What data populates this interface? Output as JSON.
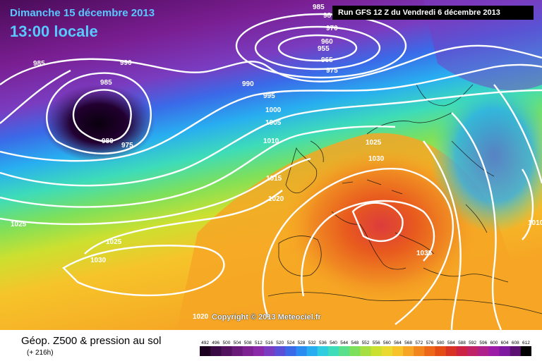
{
  "header": {
    "date": "Dimanche 15 décembre 2013",
    "time": "13:00 locale",
    "run": "Run GFS 12 Z du Vendredi 6 décembre 2013"
  },
  "copyright": "Copyright © 2013 Meteociel.fr",
  "legend": {
    "title": "Géop. Z500 & pression au sol",
    "subtitle": "(+ 216h)",
    "scale_values": [
      "492",
      "496",
      "500",
      "504",
      "508",
      "512",
      "516",
      "520",
      "524",
      "528",
      "532",
      "536",
      "540",
      "544",
      "548",
      "552",
      "556",
      "560",
      "564",
      "568",
      "572",
      "576",
      "580",
      "584",
      "588",
      "592",
      "596",
      "600",
      "604",
      "608",
      "612"
    ],
    "scale_colors": [
      "#1c0020",
      "#3a0a45",
      "#52125e",
      "#6a1a78",
      "#7d2290",
      "#8a2aa8",
      "#7a3cc0",
      "#5a50d8",
      "#3a6ae8",
      "#2a8cf0",
      "#28aef0",
      "#30cce0",
      "#3edcb8",
      "#5ae08a",
      "#7ee05a",
      "#a6e040",
      "#cce030",
      "#eada30",
      "#f6c42a",
      "#f6a624",
      "#f2861e",
      "#ec6818",
      "#e44c16",
      "#d83224",
      "#cc2244",
      "#c02268",
      "#b0208a",
      "#9c1ca8",
      "#7e18a0",
      "#5a1070",
      "#000000"
    ]
  },
  "map_labels": {
    "isobars": [
      "985",
      "98",
      "970",
      "960",
      "955",
      "965",
      "975",
      "990",
      "990",
      "985",
      "985",
      "995",
      "1000",
      "1005",
      "1010",
      "980",
      "975",
      "1025",
      "1030",
      "1015",
      "1020",
      "1025",
      "1025",
      "1030",
      "1035",
      "1020",
      "1010"
    ]
  }
}
